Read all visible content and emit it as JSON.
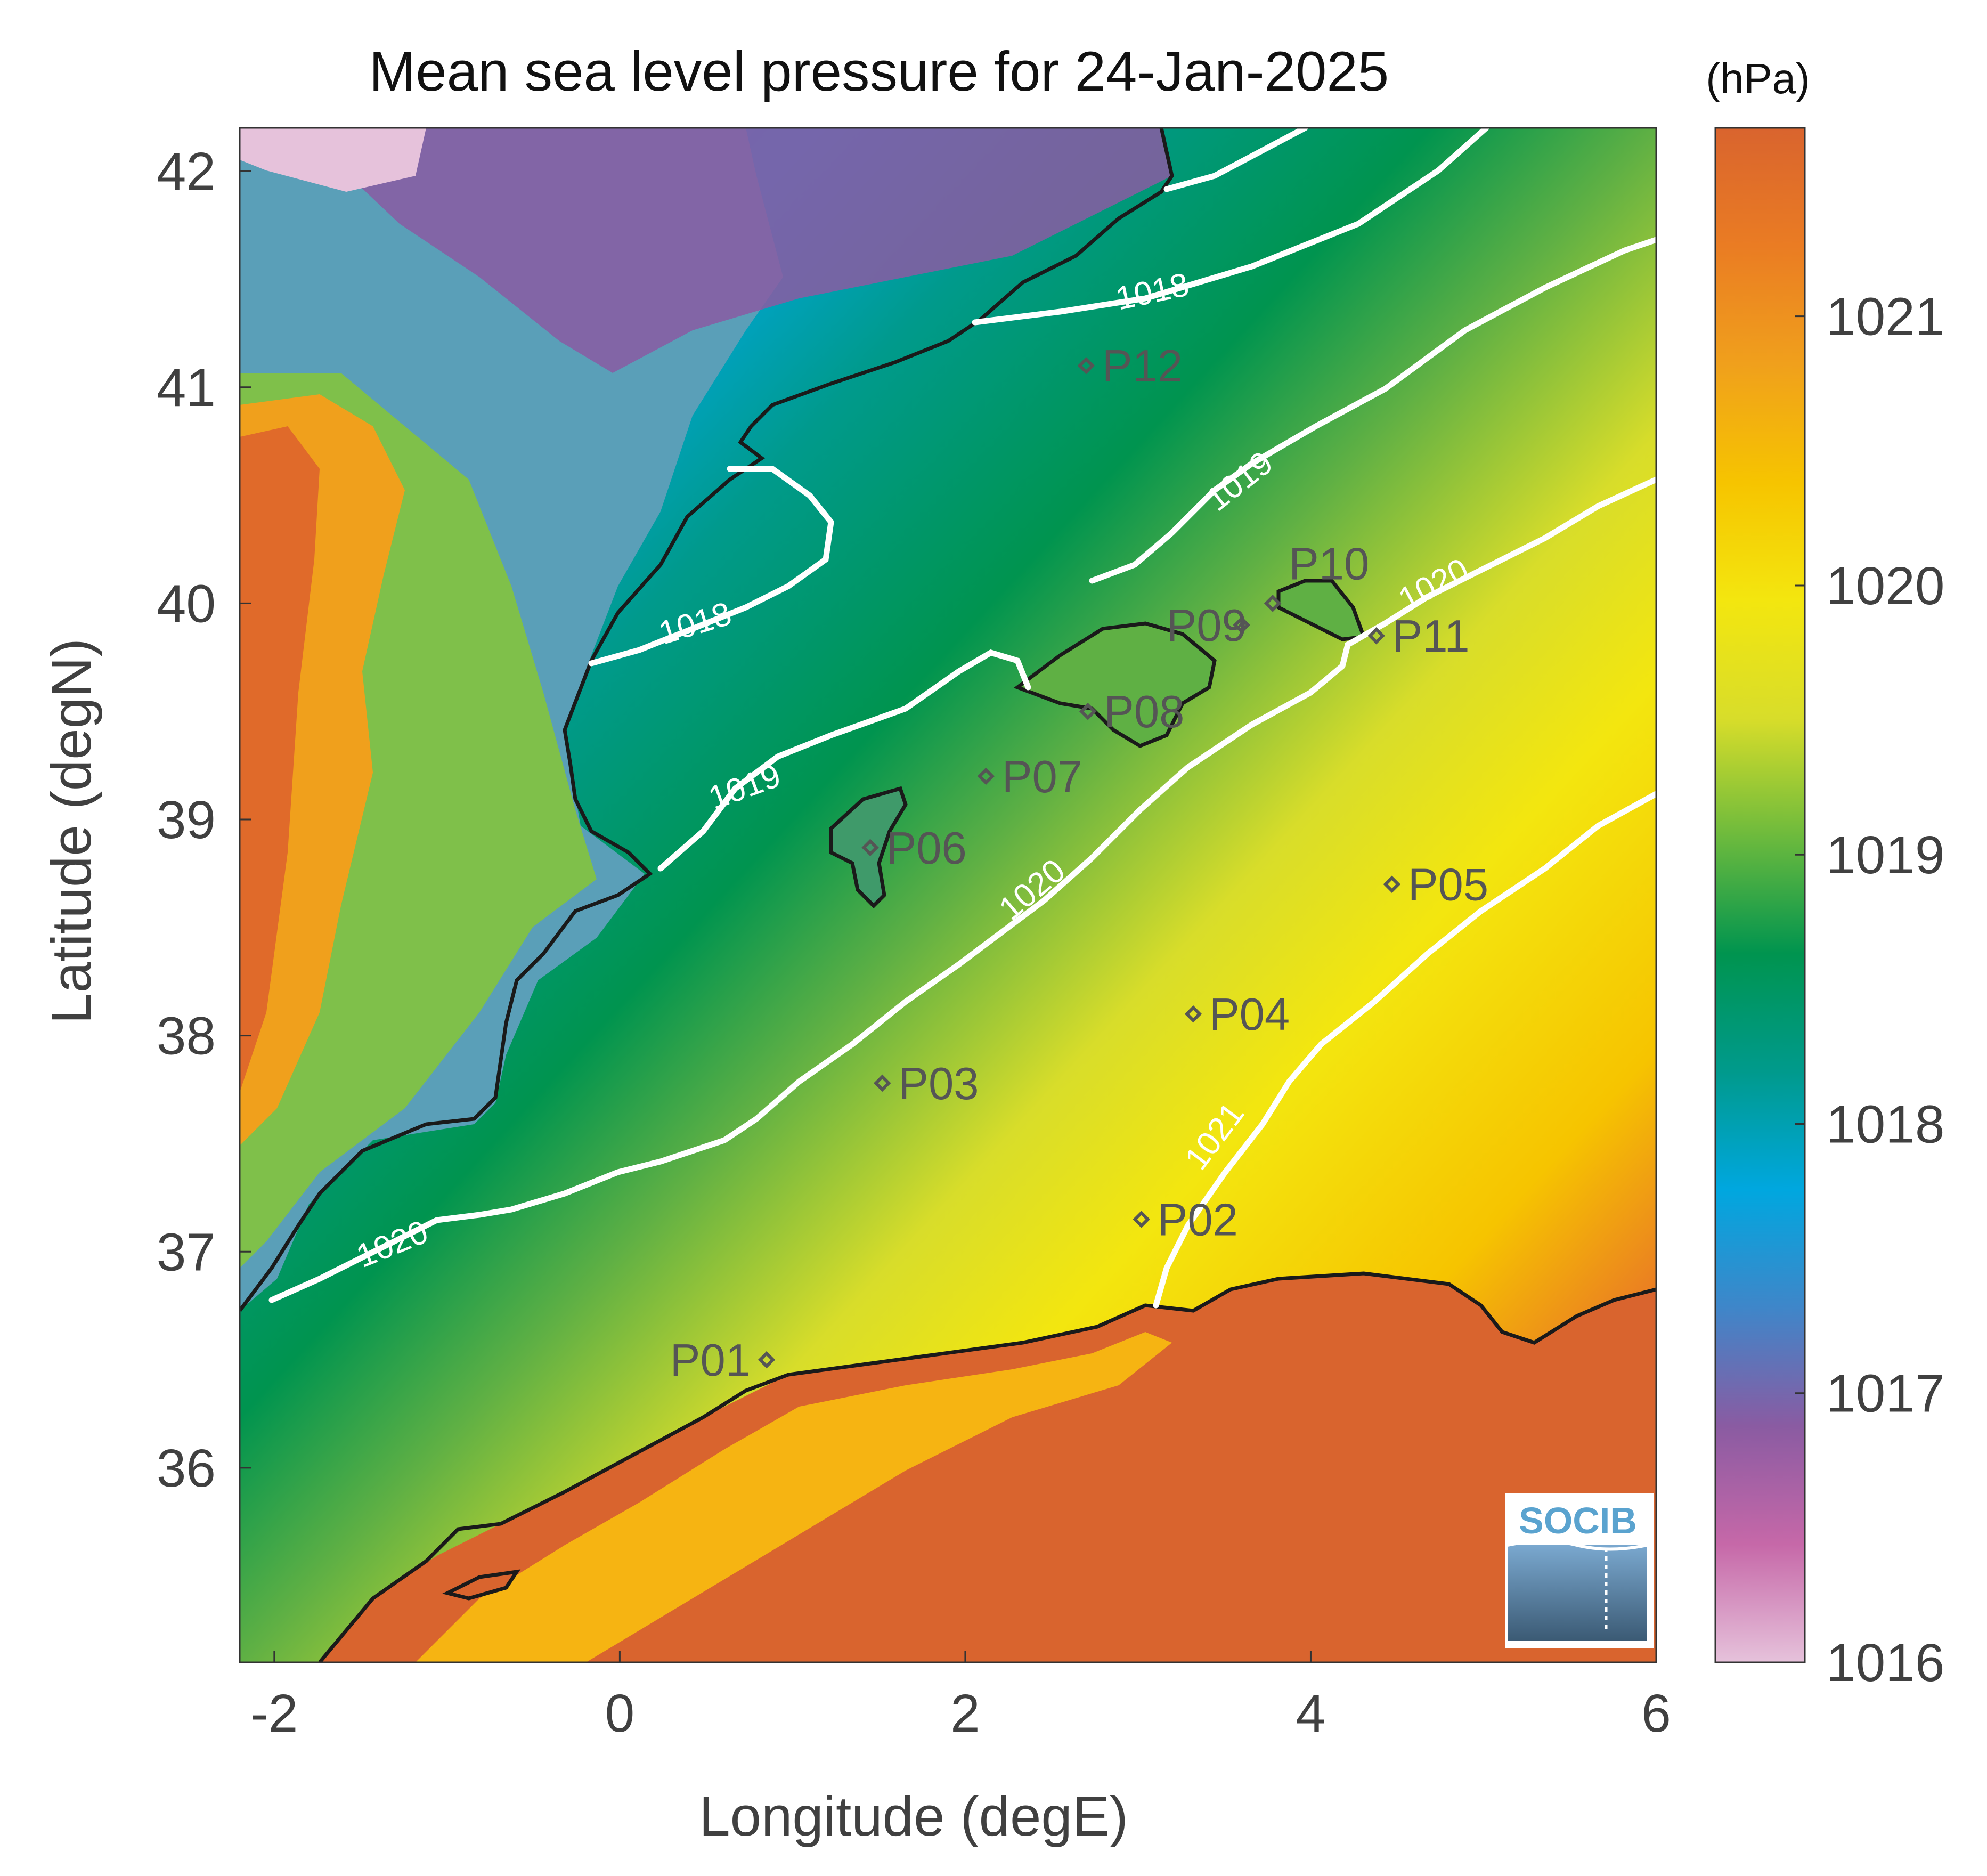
{
  "title": "Mean sea level pressure for 24-Jan-2025",
  "units": "(hPa)",
  "x_axis": {
    "label": "Longitude (degE)",
    "range": [
      -2.2,
      6.0
    ],
    "ticks": [
      {
        "value": -2,
        "label": "-2"
      },
      {
        "value": 0,
        "label": "0"
      },
      {
        "value": 2,
        "label": "2"
      },
      {
        "value": 4,
        "label": "4"
      },
      {
        "value": 6,
        "label": "6"
      }
    ]
  },
  "y_axis": {
    "label": "Latitude (degN)",
    "range": [
      35.1,
      42.2
    ],
    "ticks": [
      {
        "value": 36,
        "label": "36"
      },
      {
        "value": 37,
        "label": "37"
      },
      {
        "value": 38,
        "label": "38"
      },
      {
        "value": 39,
        "label": "39"
      },
      {
        "value": 40,
        "label": "40"
      },
      {
        "value": 41,
        "label": "41"
      },
      {
        "value": 42,
        "label": "42"
      }
    ]
  },
  "colorbar": {
    "range": [
      1016,
      1021.7
    ],
    "ticks": [
      {
        "value": 1016,
        "label": "1016"
      },
      {
        "value": 1017,
        "label": "1017"
      },
      {
        "value": 1018,
        "label": "1018"
      },
      {
        "value": 1019,
        "label": "1019"
      },
      {
        "value": 1020,
        "label": "1020"
      },
      {
        "value": 1021,
        "label": "1021"
      }
    ],
    "colors": [
      "#e6c2db",
      "#c668a8",
      "#8a5ba2",
      "#3f86c9",
      "#00a7df",
      "#009a8c",
      "#00944f",
      "#6cba3d",
      "#d8dd2a",
      "#f3e60f",
      "#f6c400",
      "#f0a01c",
      "#ea7c23",
      "#d9642e"
    ]
  },
  "chart_data": {
    "type": "heatmap",
    "title": "Mean sea level pressure for 24-Jan-2025",
    "xlabel": "Longitude (degE)",
    "ylabel": "Latitude (degN)",
    "units": "hPa",
    "xlim": [
      -2.2,
      6.0
    ],
    "ylim": [
      35.1,
      42.2
    ],
    "clim": [
      1016,
      1021.7
    ],
    "contour_levels": [
      1018,
      1019,
      1020,
      1021
    ],
    "stations": [
      {
        "name": "P01",
        "lon": 0.85,
        "lat": 36.5
      },
      {
        "name": "P02",
        "lon": 3.02,
        "lat": 37.15
      },
      {
        "name": "P03",
        "lon": 1.52,
        "lat": 37.78
      },
      {
        "name": "P04",
        "lon": 3.32,
        "lat": 38.1
      },
      {
        "name": "P05",
        "lon": 4.47,
        "lat": 38.7
      },
      {
        "name": "P06",
        "lon": 1.45,
        "lat": 38.87
      },
      {
        "name": "P07",
        "lon": 2.12,
        "lat": 39.2
      },
      {
        "name": "P08",
        "lon": 2.71,
        "lat": 39.5
      },
      {
        "name": "P09",
        "lon": 3.6,
        "lat": 39.9
      },
      {
        "name": "P10",
        "lon": 3.78,
        "lat": 40.0
      },
      {
        "name": "P11",
        "lon": 4.38,
        "lat": 39.85
      },
      {
        "name": "P12",
        "lon": 2.7,
        "lat": 41.1
      }
    ]
  },
  "logo_text": "SOCIB"
}
